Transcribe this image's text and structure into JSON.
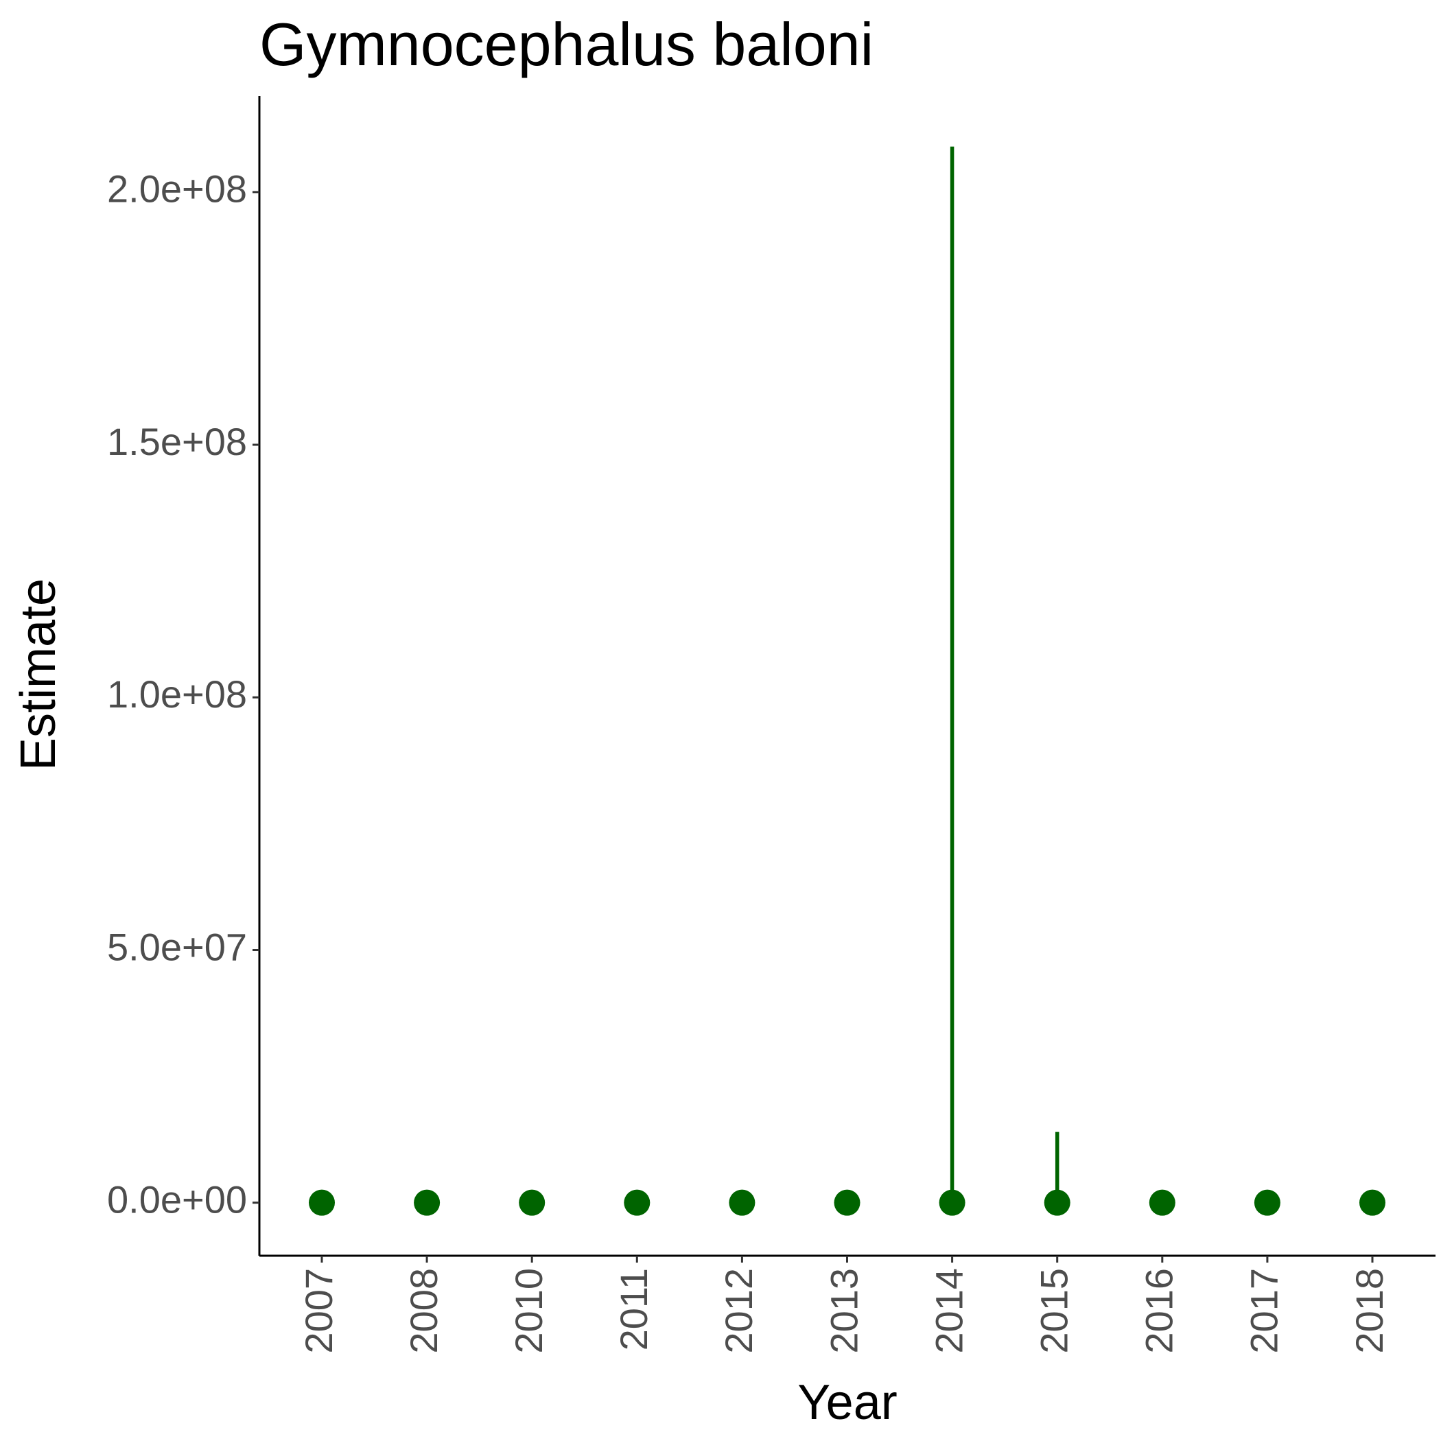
{
  "chart_data": {
    "type": "scatter",
    "title": "Gymnocephalus baloni",
    "xlabel": "Year",
    "ylabel": "Estimate",
    "categories": [
      "2007",
      "2008",
      "2010",
      "2011",
      "2012",
      "2013",
      "2014",
      "2015",
      "2016",
      "2017",
      "2018"
    ],
    "series": [
      {
        "values": [
          0,
          0,
          0,
          0,
          0,
          0,
          0,
          0,
          0,
          0,
          0
        ],
        "upper": [
          0,
          0,
          0,
          0,
          0,
          0,
          209000000,
          14000000,
          0,
          0,
          0
        ],
        "lower": [
          0,
          0,
          0,
          0,
          0,
          0,
          0,
          0,
          0,
          0,
          0
        ]
      }
    ],
    "yticks": [
      0,
      50000000,
      100000000,
      150000000,
      200000000
    ],
    "ytick_labels": [
      "0.0e+00",
      "5.0e+07",
      "1.0e+08",
      "1.5e+08",
      "2.0e+08"
    ],
    "ylim": [
      -10500000,
      219000000
    ],
    "grid": false,
    "legend": "none",
    "colors": {
      "point": "#006400",
      "error_bar": "#006400"
    }
  }
}
